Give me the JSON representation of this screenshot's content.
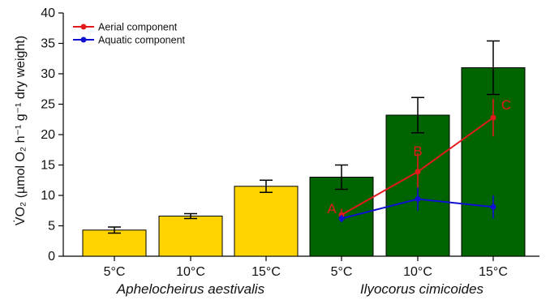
{
  "chart_data": {
    "type": "bar",
    "bar_categories": [
      "5°C",
      "10°C",
      "15°C",
      "5°C",
      "10°C",
      "15°C"
    ],
    "groups": [
      "Aphelocheirus aestivalis",
      "Ilyocorus cimicoides"
    ],
    "bar_values": [
      4.3,
      6.6,
      11.5,
      13.0,
      23.2,
      31.0
    ],
    "bar_errors": [
      0.5,
      0.4,
      1.0,
      2.0,
      2.9,
      4.4
    ],
    "bar_colors": [
      "#ffd400",
      "#ffd400",
      "#ffd400",
      "#006400",
      "#006400",
      "#006400"
    ],
    "series": [
      {
        "name": "Aerial component",
        "color": "#e31a1c",
        "x_index": [
          3,
          4,
          5
        ],
        "values": [
          6.8,
          13.9,
          22.8
        ],
        "errors": [
          1.0,
          3.0,
          3.1
        ],
        "point_labels": [
          "A",
          "B",
          "C"
        ]
      },
      {
        "name": "Aquatic component",
        "color": "#1010d0",
        "x_index": [
          3,
          4,
          5
        ],
        "values": [
          6.2,
          9.4,
          8.1
        ],
        "errors": [
          0.6,
          1.9,
          1.9
        ],
        "point_labels": []
      }
    ],
    "ylim": [
      0,
      40
    ],
    "yticks": [
      0,
      5,
      10,
      15,
      20,
      25,
      30,
      35,
      40
    ],
    "ylabel": "V̇O₂ (µmol O₂ h⁻¹ g⁻¹ dry weight)",
    "legend_position": "top-left",
    "grid": false
  }
}
